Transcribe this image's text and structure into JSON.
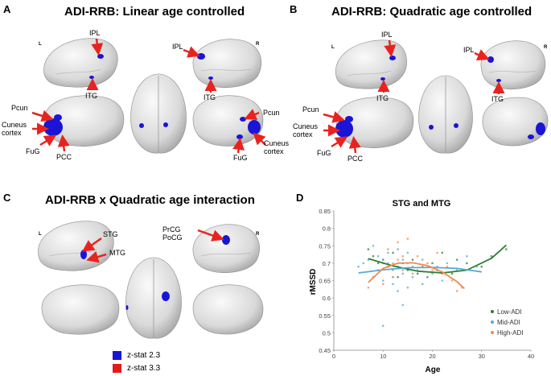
{
  "panels": {
    "A": {
      "letter": "A",
      "title": "ADI-RRB: Linear age controlled",
      "left": "L",
      "right": "R",
      "labels": {
        "ipl_l": "IPL",
        "itg_l": "ITG",
        "ipl_r": "IPL",
        "itg_r": "ITG",
        "pcun_l": "Pcun",
        "cuneus_l": "Cuneus\ncortex",
        "fug_l": "FuG",
        "pcc_l": "PCC",
        "pcun_r": "Pcun",
        "cuneus_r": "Cuneus\ncortex",
        "fug_r": "FuG"
      }
    },
    "B": {
      "letter": "B",
      "title": "ADI-RRB: Quadratic age controlled",
      "left": "L",
      "right": "R",
      "labels": {
        "ipl_l": "IPL",
        "itg_l": "ITG",
        "ipl_r": "IPL",
        "itg_r": "ITG",
        "pcun_l": "Pcun",
        "cuneus_l": "Cuneus\ncortex",
        "fug_l": "FuG",
        "pcc_l": "PCC"
      }
    },
    "C": {
      "letter": "C",
      "title": "ADI-RRB x Quadratic age interaction",
      "left": "L",
      "right": "R",
      "labels": {
        "stg": "STG",
        "mtg": "MTG",
        "prcg": "PrCG",
        "pocg": "PoCG"
      },
      "legend": [
        {
          "label": "z-stat 2.3",
          "color": "#1a14d6"
        },
        {
          "label": "z-stat 3.3",
          "color": "#e11b1b"
        }
      ]
    },
    "D": {
      "letter": "D"
    }
  },
  "colors": {
    "arrow": "#e8231f",
    "activation": "#1a14d6",
    "brain_light": "#efefef",
    "brain_shade": "#9d9d9d"
  },
  "chart_data": {
    "type": "scatter",
    "title": "STG and MTG",
    "xlabel": "Age",
    "ylabel": "rMSSD",
    "xlim": [
      0,
      40
    ],
    "ylim": [
      0.45,
      0.85
    ],
    "xticks": [
      0,
      10,
      20,
      30,
      40
    ],
    "yticks": [
      0.45,
      0.5,
      0.55,
      0.6,
      0.65,
      0.7,
      0.75,
      0.8,
      0.85
    ],
    "legend_position": "bottom-right",
    "series": [
      {
        "name": "Low-ADI",
        "color": "#2e7d32",
        "points": [
          [
            7,
            0.74
          ],
          [
            8,
            0.72
          ],
          [
            9,
            0.7
          ],
          [
            10,
            0.71
          ],
          [
            11,
            0.69
          ],
          [
            12,
            0.73
          ],
          [
            13,
            0.66
          ],
          [
            14,
            0.7
          ],
          [
            15,
            0.68
          ],
          [
            16,
            0.71
          ],
          [
            17,
            0.67
          ],
          [
            18,
            0.69
          ],
          [
            19,
            0.66
          ],
          [
            20,
            0.7
          ],
          [
            21,
            0.68
          ],
          [
            22,
            0.73
          ],
          [
            24,
            0.67
          ],
          [
            25,
            0.71
          ],
          [
            27,
            0.7
          ],
          [
            30,
            0.69
          ],
          [
            32,
            0.72
          ],
          [
            35,
            0.74
          ]
        ],
        "fit": [
          [
            7,
            0.713
          ],
          [
            12,
            0.692
          ],
          [
            17,
            0.677
          ],
          [
            22,
            0.672
          ],
          [
            27,
            0.68
          ],
          [
            32,
            0.714
          ],
          [
            35,
            0.752
          ]
        ]
      },
      {
        "name": "Mid-ADI",
        "color": "#5aa7d6",
        "points": [
          [
            5,
            0.69
          ],
          [
            6,
            0.7
          ],
          [
            7,
            0.71
          ],
          [
            8,
            0.66
          ],
          [
            8,
            0.75
          ],
          [
            9,
            0.72
          ],
          [
            9,
            0.68
          ],
          [
            10,
            0.65
          ],
          [
            10,
            0.71
          ],
          [
            10,
            0.52
          ],
          [
            11,
            0.73
          ],
          [
            11,
            0.7
          ],
          [
            12,
            0.66
          ],
          [
            12,
            0.68
          ],
          [
            12,
            0.64
          ],
          [
            13,
            0.74
          ],
          [
            13,
            0.69
          ],
          [
            13,
            0.62
          ],
          [
            14,
            0.71
          ],
          [
            14,
            0.67
          ],
          [
            14,
            0.58
          ],
          [
            15,
            0.73
          ],
          [
            15,
            0.63
          ],
          [
            16,
            0.69
          ],
          [
            16,
            0.66
          ],
          [
            17,
            0.68
          ],
          [
            18,
            0.64
          ],
          [
            18,
            0.71
          ],
          [
            19,
            0.66
          ],
          [
            20,
            0.67
          ],
          [
            21,
            0.69
          ],
          [
            22,
            0.65
          ],
          [
            23,
            0.7
          ],
          [
            25,
            0.68
          ],
          [
            27,
            0.72
          ],
          [
            29,
            0.69
          ]
        ],
        "fit": [
          [
            5,
            0.672
          ],
          [
            10,
            0.681
          ],
          [
            15,
            0.687
          ],
          [
            20,
            0.688
          ],
          [
            25,
            0.685
          ],
          [
            30,
            0.675
          ]
        ]
      },
      {
        "name": "High-ADI",
        "color": "#f08a4b",
        "points": [
          [
            7,
            0.63
          ],
          [
            8,
            0.66
          ],
          [
            9,
            0.68
          ],
          [
            10,
            0.64
          ],
          [
            10,
            0.7
          ],
          [
            11,
            0.74
          ],
          [
            12,
            0.7
          ],
          [
            12,
            0.66
          ],
          [
            13,
            0.71
          ],
          [
            13,
            0.76
          ],
          [
            14,
            0.68
          ],
          [
            14,
            0.72
          ],
          [
            15,
            0.7
          ],
          [
            15,
            0.77
          ],
          [
            16,
            0.67
          ],
          [
            17,
            0.72
          ],
          [
            18,
            0.69
          ],
          [
            19,
            0.7
          ],
          [
            20,
            0.68
          ],
          [
            21,
            0.73
          ],
          [
            22,
            0.67
          ],
          [
            23,
            0.69
          ],
          [
            24,
            0.65
          ],
          [
            25,
            0.62
          ],
          [
            26,
            0.63
          ]
        ],
        "fit": [
          [
            7,
            0.645
          ],
          [
            10,
            0.685
          ],
          [
            13,
            0.7
          ],
          [
            16,
            0.701
          ],
          [
            19,
            0.693
          ],
          [
            22,
            0.675
          ],
          [
            25,
            0.647
          ],
          [
            26.5,
            0.627
          ]
        ]
      }
    ]
  }
}
